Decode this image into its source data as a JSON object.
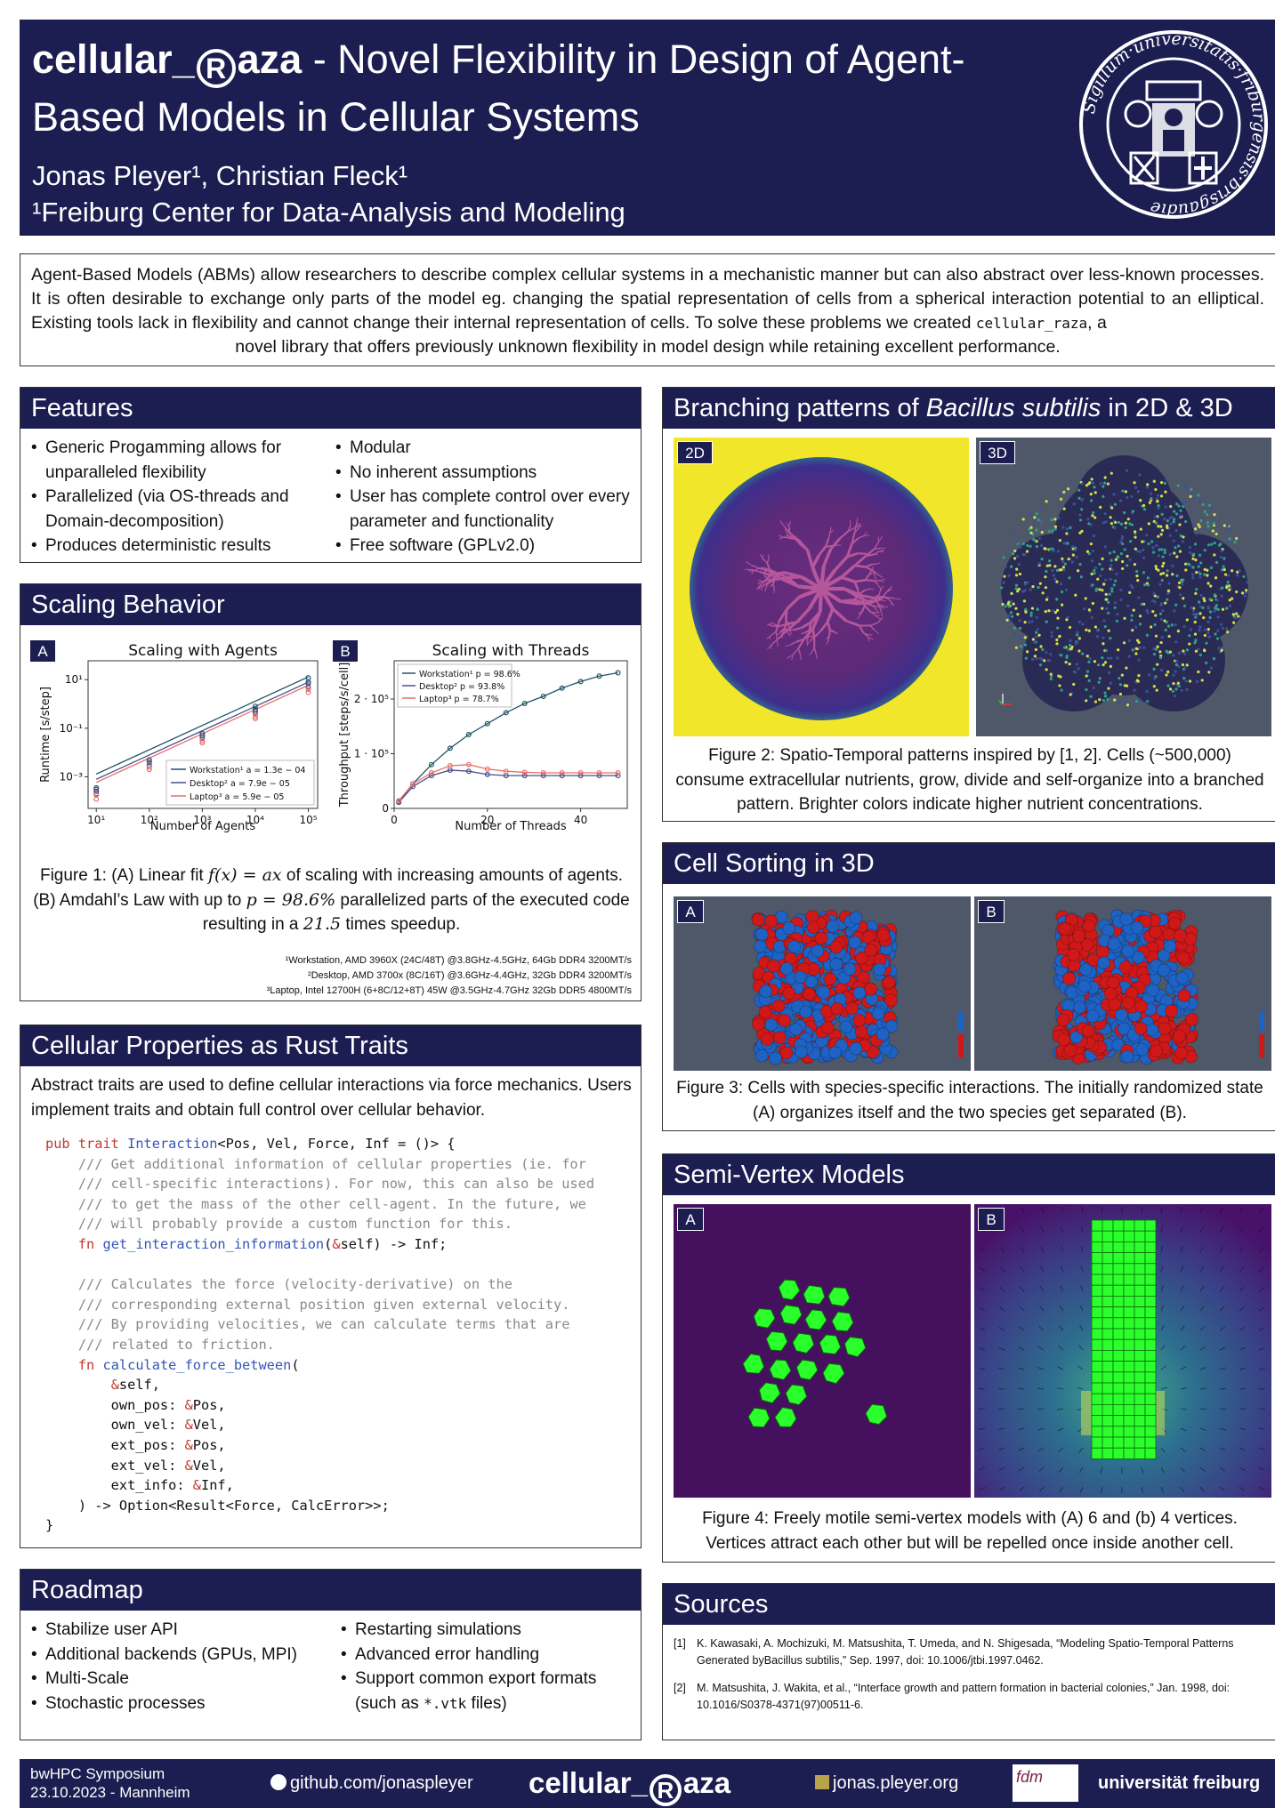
{
  "header": {
    "logo_name_pre": "cellular_",
    "logo_letter": "R",
    "logo_name_post": "aza",
    "title_rest": " - Novel Flexibility in Design of Agent-",
    "title_line2": "Based Models in Cellular Systems",
    "authors": "Jonas Pleyer¹, Christian Fleck¹",
    "affiliation": "¹Freiburg Center for Data-Analysis and Modeling"
  },
  "abstract": {
    "text": "Agent-Based Models (ABMs) allow researchers to describe complex cellular systems in a mechanistic manner but can also abstract over less-known processes. It is often desirable to exchange only parts of the model eg. changing the spatial representation of cells from a spherical interaction potential to an elliptical. Existing tools lack in flexibility and cannot change their internal representation of cells. To solve these problems we created ",
    "code": "cellular_raza",
    "text_end": ", a",
    "last_line": "novel library that offers previously unknown flexibility in model design while retaining excellent performance."
  },
  "features": {
    "title": "Features",
    "left": [
      "Generic Progamming allows for unparalleled flexibility",
      "Parallelized (via OS-threads and Domain-decomposition)",
      "Produces deterministic results"
    ],
    "right": [
      "Modular",
      "No inherent assumptions",
      "User has complete control over every parameter and functionality",
      "Free software (GPLv2.0)"
    ]
  },
  "scaling": {
    "title": "Scaling Behavior",
    "tag_a": "A",
    "tag_b": "B",
    "caption_1": "Figure 1:  (A) Linear fit ",
    "caption_f": "f(x) = ax",
    "caption_2": " of scaling with increasing amounts of agents. (B) Amdahl’s Law with up to ",
    "caption_p": "p = 98.6%",
    "caption_3": " parallelized parts of the executed code resulting in a ",
    "caption_s": "21.5",
    "caption_4": " times speedup.",
    "footnotes": [
      "¹Workstation, AMD 3960X (24C/48T) @3.8GHz-4.5GHz, 64Gb DDR4 3200MT/s",
      "²Desktop, AMD 3700x (8C/16T) @3.6GHz-4.4GHz, 32Gb DDR4 3200MT/s",
      "³Laptop, Intel 12700H (6+8C/12+8T) 45W @3.5GHz-4.7GHz 32Gb DDR5 4800MT/s"
    ]
  },
  "chart_data": [
    {
      "type": "scatter",
      "title": "Scaling with Agents",
      "xlabel": "Number of Agents",
      "ylabel": "Runtime [s/step]",
      "xscale": "log",
      "yscale": "log",
      "xlim": [
        7,
        150000
      ],
      "ylim": [
        5e-05,
        60
      ],
      "xticks": [
        "10¹",
        "10²",
        "10³",
        "10⁴",
        "10⁵"
      ],
      "yticks": [
        "10¹",
        "10⁻¹",
        "10⁻³"
      ],
      "legend_position": "lower-right",
      "series": [
        {
          "name": "Workstation¹ a = 1.3e − 04",
          "color": "#1f5466",
          "x": [
            10,
            10,
            100,
            100,
            1000,
            1000,
            10000,
            10000,
            100000,
            100000
          ],
          "y": [
            0.00025,
            0.00035,
            0.004,
            0.005,
            0.05,
            0.06,
            0.6,
            0.8,
            8,
            12
          ]
        },
        {
          "name": "Desktop² a = 7.9e − 05",
          "color": "#4a4f8c",
          "x": [
            10,
            10,
            100,
            100,
            1000,
            1000,
            10000,
            10000,
            100000,
            100000
          ],
          "y": [
            0.0002,
            0.0003,
            0.003,
            0.004,
            0.04,
            0.05,
            0.4,
            0.5,
            5,
            7
          ]
        },
        {
          "name": "Laptop³ a = 5.9e − 05",
          "color": "#e8716b",
          "x": [
            10,
            10,
            100,
            100,
            1000,
            1000,
            10000,
            10000,
            100000,
            100000
          ],
          "y": [
            0.00012,
            0.00018,
            0.002,
            0.0025,
            0.025,
            0.03,
            0.25,
            0.3,
            3,
            4
          ]
        }
      ],
      "fit_lines": [
        {
          "name": "Workstation¹",
          "a": 0.00013
        },
        {
          "name": "Desktop²",
          "a": 7.9e-05
        },
        {
          "name": "Laptop³",
          "a": 5.9e-05
        }
      ]
    },
    {
      "type": "scatter",
      "title": "Scaling with Threads",
      "xlabel": "Number of Threads",
      "ylabel": "Throughput [steps/s/cell]",
      "xlim": [
        0,
        50
      ],
      "ylim": [
        0,
        270000
      ],
      "xticks": [
        "0",
        "20",
        "40"
      ],
      "yticks": [
        "0",
        "1 · 10⁵",
        "2 · 10⁵"
      ],
      "legend_position": "upper-left",
      "series": [
        {
          "name": "Workstation¹ p = 98.6%",
          "color": "#1f5466",
          "x": [
            1,
            4,
            8,
            12,
            16,
            20,
            24,
            28,
            32,
            36,
            40,
            44,
            48
          ],
          "y": [
            12000,
            45000,
            80000,
            110000,
            135000,
            155000,
            175000,
            192000,
            205000,
            220000,
            232000,
            242000,
            248000
          ]
        },
        {
          "name": "Desktop² p = 93.8%",
          "color": "#4a4f8c",
          "x": [
            1,
            4,
            8,
            12,
            16,
            20,
            24,
            28,
            32,
            36,
            40,
            44,
            48
          ],
          "y": [
            11000,
            40000,
            60000,
            70000,
            68000,
            62000,
            60000,
            60000,
            60000,
            60000,
            60000,
            60000,
            60000
          ]
        },
        {
          "name": "Laptop³ p = 78.7%",
          "color": "#e8716b",
          "x": [
            1,
            4,
            8,
            12,
            16,
            20,
            24,
            28,
            32,
            36,
            40,
            44,
            48
          ],
          "y": [
            14000,
            45000,
            65000,
            78000,
            80000,
            72000,
            68000,
            66000,
            65000,
            65000,
            65000,
            65000,
            65000
          ]
        }
      ]
    }
  ],
  "traits": {
    "title": "Cellular Properties as Rust Traits",
    "intro": "Abstract traits are used to define cellular interactions via force mechanics. Users implement traits and obtain full control over cellular behavior.",
    "code_lines": [
      "pub trait Interaction<Pos, Vel, Force, Inf = ()> {",
      "    /// Get additional information of cellular properties (ie. for",
      "    /// cell-specific interactions). For now, this can also be used",
      "    /// to get the mass of the other cell-agent. In the future, we",
      "    /// will probably provide a custom function for this.",
      "    fn get_interaction_information(&self) -> Inf;",
      "",
      "    /// Calculates the force (velocity-derivative) on the",
      "    /// corresponding external position given external velocity.",
      "    /// By providing velocities, we can calculate terms that are",
      "    /// related to friction.",
      "    fn calculate_force_between(",
      "        &self,",
      "        own_pos: &Pos,",
      "        own_vel: &Vel,",
      "        ext_pos: &Pos,",
      "        ext_vel: &Vel,",
      "        ext_info: &Inf,",
      "    ) -> Option<Result<Force, CalcError>>;",
      "}"
    ]
  },
  "roadmap": {
    "title": "Roadmap",
    "left": [
      "Stabilize user API",
      "Additional backends (GPUs, MPI)",
      "Multi-Scale",
      "Stochastic processes"
    ],
    "right_1": "Restarting simulations",
    "right_2": "Advanced error handling",
    "right_3a": "Support common export formats (such as ",
    "right_3code": "*.vtk",
    "right_3b": " files)"
  },
  "branching": {
    "title_pre": "Branching patterns of ",
    "title_it": "Bacillus subtilis",
    "title_post": " in 2D & 3D",
    "tag_2d": "2D",
    "tag_3d": "3D",
    "caption": "Figure 2:  Spatio-Temporal patterns inspired by [1, 2]. Cells (~500,000) consume extracellular nutrients, grow, divide and self-organize into a branched pattern. Brighter colors indicate higher nutrient concentrations."
  },
  "sorting": {
    "title": "Cell Sorting in 3D",
    "tag_a": "A",
    "tag_b": "B",
    "caption": "Figure 3:  Cells with species-specific interactions. The initially randomized state (A) organizes itself and the two species get separated (B)."
  },
  "semivertex": {
    "title": "Semi-Vertex Models",
    "tag_a": "A",
    "tag_b": "B",
    "caption": "Figure 4:  Freely motile semi-vertex models with (A) 6 and (b) 4 vertices. Vertices attract each other but will be repelled once inside another cell."
  },
  "sources": {
    "title": "Sources",
    "items": [
      {
        "num": "[1]",
        "text": "K. Kawasaki, A. Mochizuki, M. Matsushita, T. Umeda, and N. Shigesada, “Modeling Spatio-Temporal Patterns Generated byBacillus subtilis,” Sep. 1997, doi: 10.1006/jtbi.1997.0462."
      },
      {
        "num": "[2]",
        "text": "M. Matsushita, J. Wakita, et al., “Interface growth and pattern formation in bacterial colonies,” Jan. 1998, doi: 10.1016/S0378-4371(97)00511-6."
      }
    ]
  },
  "footer": {
    "event_line1": "bwHPC Symposium",
    "event_line2": "23.10.2023 - Mannheim",
    "github": "github.com/jonaspleyer",
    "website": "jonas.pleyer.org",
    "fdm": "fdm",
    "university": "universität freiburg"
  },
  "colors": {
    "navy": "#1c1e52",
    "red_cells": "#d01818",
    "blue_cells": "#1e62c4",
    "green_cells": "#2bff2b"
  }
}
